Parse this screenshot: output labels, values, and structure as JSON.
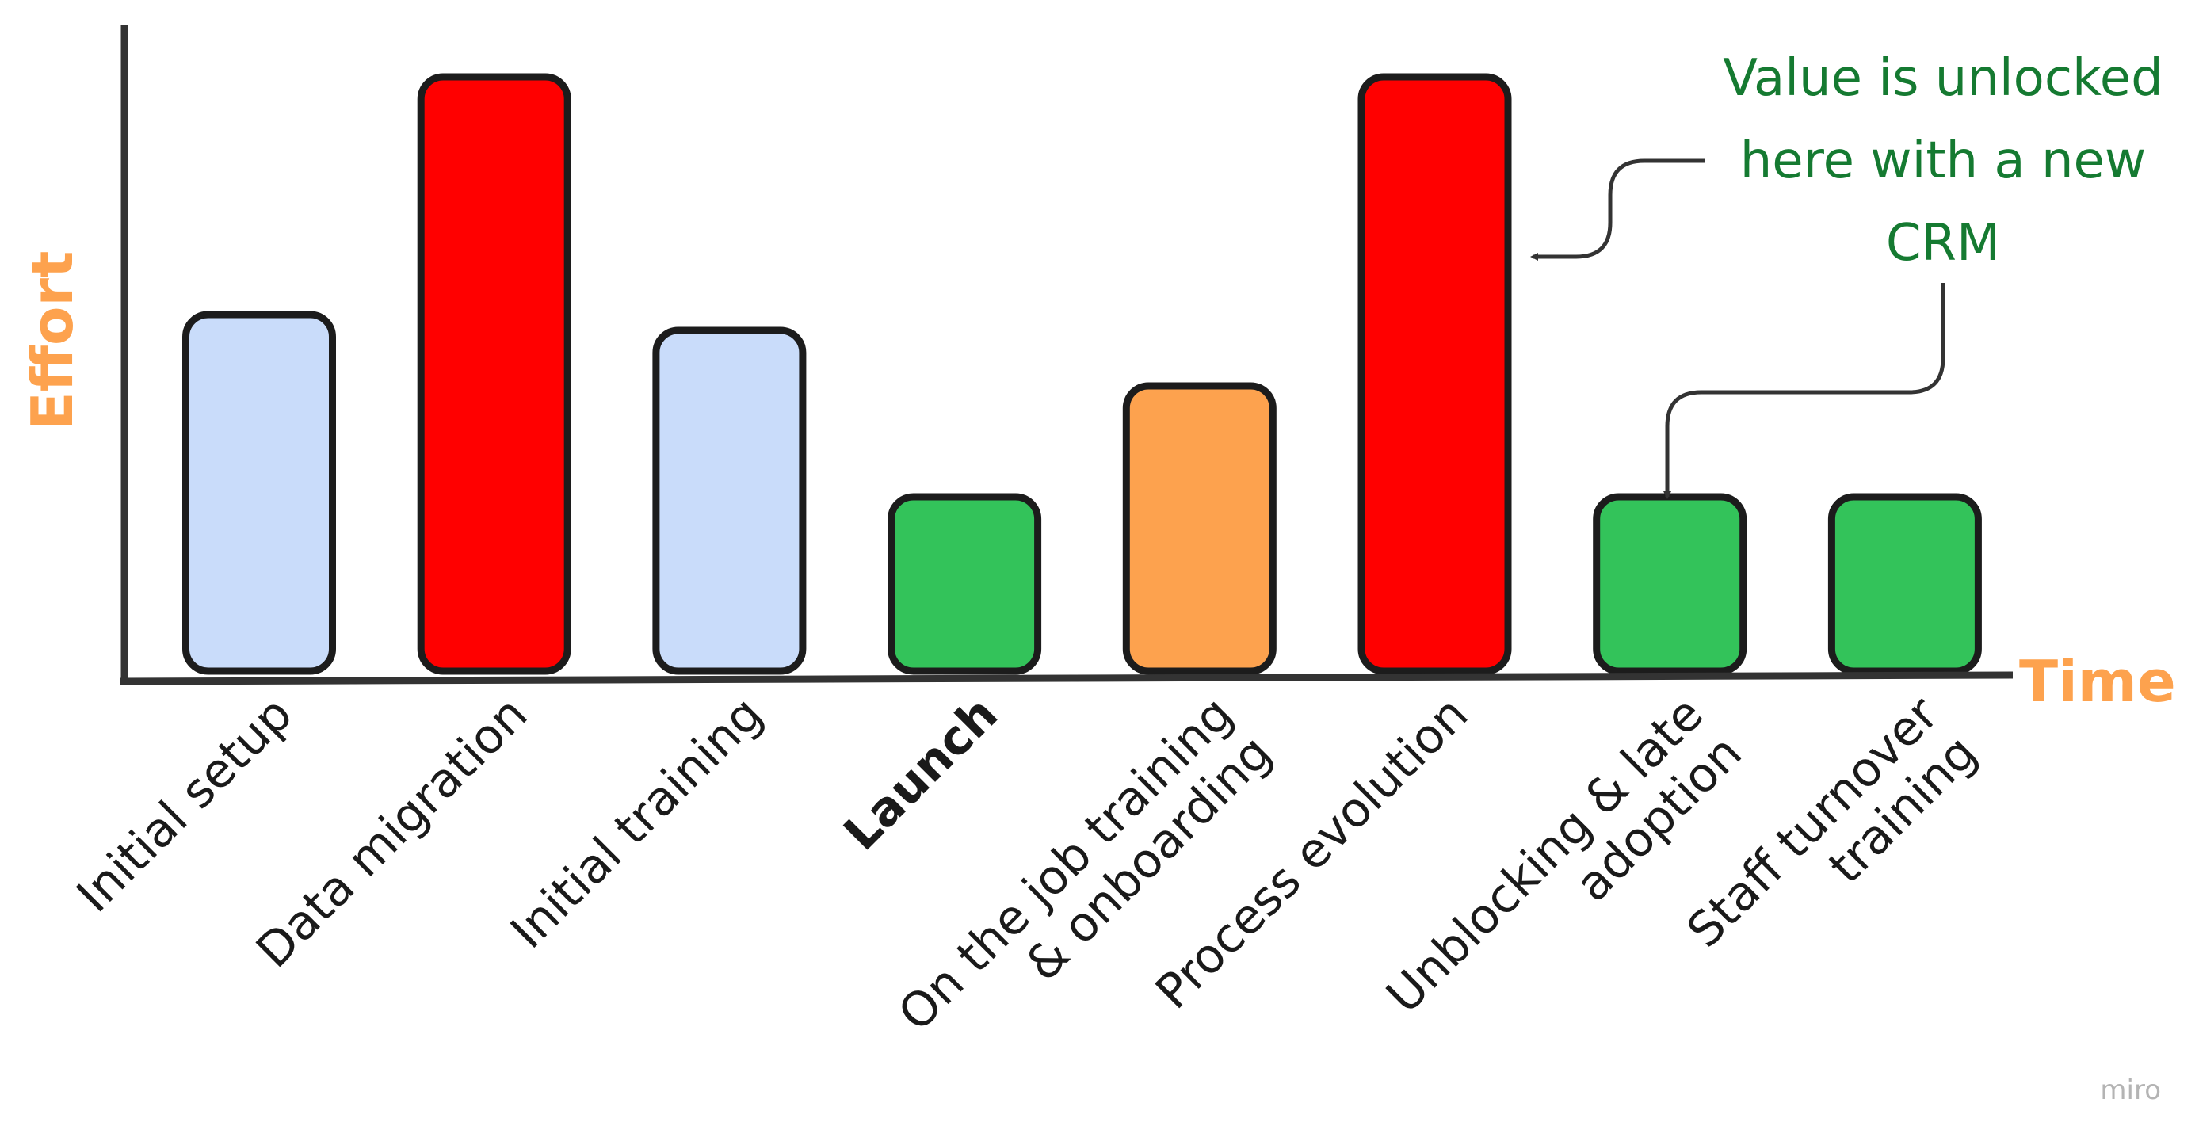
{
  "chart_data": {
    "type": "bar",
    "categories": [
      "Initial setup",
      "Data migration",
      "Initial training",
      "Launch",
      "On the job training & onboarding",
      "Process evolution",
      "Unblocking & late adoption",
      "Staff turnover training"
    ],
    "category_lines": [
      [
        "Initial setup"
      ],
      [
        "Data migration"
      ],
      [
        "Initial training"
      ],
      [
        "Launch"
      ],
      [
        "On the job training",
        "& onboarding"
      ],
      [
        "Process evolution"
      ],
      [
        "Unblocking & late",
        "adoption"
      ],
      [
        "Staff turnover",
        "training"
      ]
    ],
    "bold_categories": [
      "Launch"
    ],
    "values": [
      4.5,
      7.5,
      4.3,
      2.2,
      3.6,
      7.5,
      2.2,
      2.2
    ],
    "bar_colors": [
      "#c9dcfa",
      "#ff0000",
      "#c9dcfa",
      "#33c35a",
      "#fda24e",
      "#ff0000",
      "#33c35a",
      "#33c35a"
    ],
    "ylim": [
      0,
      8
    ],
    "xlabel": "Time",
    "ylabel": "Effort",
    "axis_label_color": "#fda24e",
    "grid": false,
    "annotation": {
      "lines": [
        "Value is unlocked",
        "here with a new",
        "CRM"
      ],
      "color": "#157a31",
      "points_to": [
        "Process evolution",
        "Unblocking & late adoption"
      ]
    }
  },
  "watermark": "miro"
}
